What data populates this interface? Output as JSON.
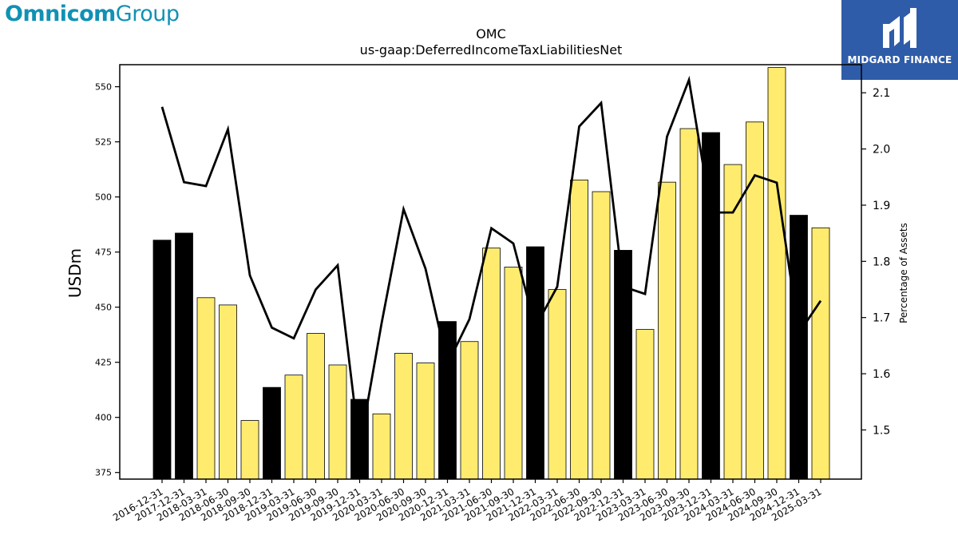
{
  "branding": {
    "left_logo_bold": "Omnicom",
    "left_logo_light": "Group",
    "right_badge_text": "MIDGARD FINANCE",
    "right_badge_icon": "midgard-logo-icon"
  },
  "colors": {
    "bar_yellow": "#ffec6e",
    "bar_black": "#000000",
    "line": "#000000",
    "brand_teal": "#1191b4",
    "badge_blue": "#2f5ca8"
  },
  "chart_data": {
    "type": "bar",
    "title": "OMC",
    "subtitle": "us-gaap:DeferredIncomeTaxLiabilitiesNet",
    "ylabel": "USDm",
    "y2label": "Percentage of Assets",
    "ylim": [
      372,
      560
    ],
    "y2lim": [
      1.4125,
      2.15
    ],
    "yticks": [
      375,
      400,
      425,
      450,
      475,
      500,
      525,
      550
    ],
    "y2ticks": [
      1.5,
      1.6,
      1.7,
      1.8,
      1.9,
      2.0,
      2.1
    ],
    "categories": [
      "2016-12-31",
      "2017-12-31",
      "2018-03-31",
      "2018-06-30",
      "2018-09-30",
      "2018-12-31",
      "2019-03-31",
      "2019-06-30",
      "2019-09-30",
      "2019-12-31",
      "2020-03-31",
      "2020-06-30",
      "2020-09-30",
      "2020-12-31",
      "2021-03-31",
      "2021-06-30",
      "2021-09-30",
      "2021-12-31",
      "2022-03-31",
      "2022-06-30",
      "2022-09-30",
      "2022-12-31",
      "2023-03-31",
      "2023-06-30",
      "2023-09-30",
      "2023-12-31",
      "2024-03-31",
      "2024-06-30",
      "2024-09-30",
      "2024-12-31",
      "2025-03-31"
    ],
    "series": [
      {
        "type": "bar",
        "axis": "left",
        "values": [
          480.4,
          483.6,
          454.3,
          451.0,
          398.6,
          413.6,
          419.2,
          438.1,
          423.8,
          408.2,
          401.6,
          429.1,
          424.7,
          443.5,
          434.4,
          476.8,
          468.2,
          477.4,
          458.0,
          507.7,
          502.4,
          475.8,
          439.9,
          506.7,
          531.0,
          529.2,
          514.7,
          534.0,
          558.7,
          491.7,
          486.0
        ],
        "highlight": [
          1,
          1,
          0,
          0,
          0,
          1,
          0,
          0,
          0,
          1,
          0,
          0,
          0,
          1,
          0,
          0,
          0,
          1,
          0,
          0,
          0,
          1,
          0,
          0,
          0,
          1,
          0,
          0,
          0,
          1,
          0
        ]
      },
      {
        "type": "line",
        "axis": "right",
        "values": [
          2.075,
          1.941,
          1.934,
          2.035,
          1.775,
          1.682,
          1.663,
          1.75,
          1.793,
          1.468,
          1.69,
          1.893,
          1.787,
          1.617,
          1.697,
          1.859,
          1.832,
          1.683,
          1.755,
          2.04,
          2.082,
          1.755,
          1.742,
          2.022,
          2.123,
          1.887,
          1.887,
          1.953,
          1.94,
          1.672,
          1.73
        ]
      }
    ]
  }
}
